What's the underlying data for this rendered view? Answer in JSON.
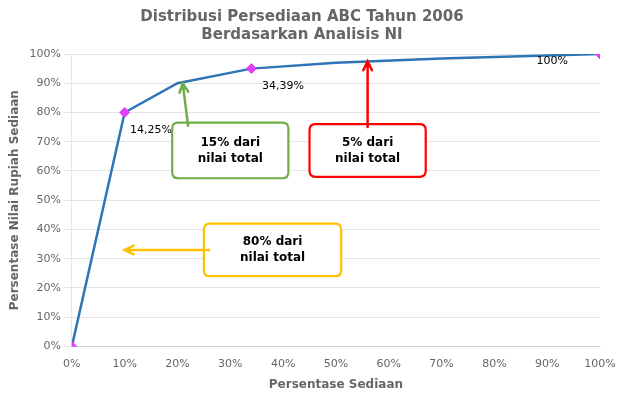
{
  "chart_data": {
    "type": "line",
    "title": "Distribusi Persediaan ABC Tahun 2006\nBerdasarkan Analisis NI",
    "xlabel": "Persentase Sediaan",
    "ylabel": "Persentase Nilai Rupiah Sediaan",
    "series": [
      {
        "type": "line",
        "color": "#2E75B6",
        "marker": "none",
        "x": [
          0,
          10,
          20,
          34,
          50,
          70,
          80,
          90,
          100
        ],
        "values": [
          0,
          80,
          90,
          95,
          97,
          98.5,
          99,
          99.5,
          100
        ]
      },
      {
        "type": "scatter",
        "color": "#E040FB",
        "marker": "diamond",
        "x": [
          0,
          10,
          34,
          100
        ],
        "values": [
          0,
          80,
          95,
          100
        ]
      }
    ],
    "xlim": [
      0,
      100
    ],
    "ylim": [
      0,
      100
    ],
    "xticks": [
      {
        "value": 0,
        "label": "0%"
      },
      {
        "value": 10,
        "label": "10%"
      },
      {
        "value": 20,
        "label": "20%"
      },
      {
        "value": 30,
        "label": "30%"
      },
      {
        "value": 40,
        "label": "40%"
      },
      {
        "value": 50,
        "label": "50%"
      },
      {
        "value": 60,
        "label": "60%"
      },
      {
        "value": 70,
        "label": "70%"
      },
      {
        "value": 80,
        "label": "80%"
      },
      {
        "value": 90,
        "label": "90%"
      },
      {
        "value": 100,
        "label": "100%"
      }
    ],
    "yticks": [
      {
        "value": 0,
        "label": "0%"
      },
      {
        "value": 10,
        "label": "10%"
      },
      {
        "value": 20,
        "label": "20%"
      },
      {
        "value": 30,
        "label": "30%"
      },
      {
        "value": 40,
        "label": "40%"
      },
      {
        "value": 50,
        "label": "50%"
      },
      {
        "value": 60,
        "label": "60%"
      },
      {
        "value": 70,
        "label": "70%"
      },
      {
        "value": 80,
        "label": "80%"
      },
      {
        "value": 90,
        "label": "90%"
      },
      {
        "value": 100,
        "label": "100%"
      }
    ],
    "grid": "y",
    "legend": false,
    "annotations": [
      {
        "text": "14,25%"
      },
      {
        "text": "34,39%"
      },
      {
        "text": "100%"
      },
      {
        "text": "80% dari\nnilai total",
        "color": "#FFC000"
      },
      {
        "text": "15% dari\nnilai total",
        "color": "#70AD47"
      },
      {
        "text": "5% dari\nnilai total",
        "color": "#FF0000"
      }
    ]
  }
}
